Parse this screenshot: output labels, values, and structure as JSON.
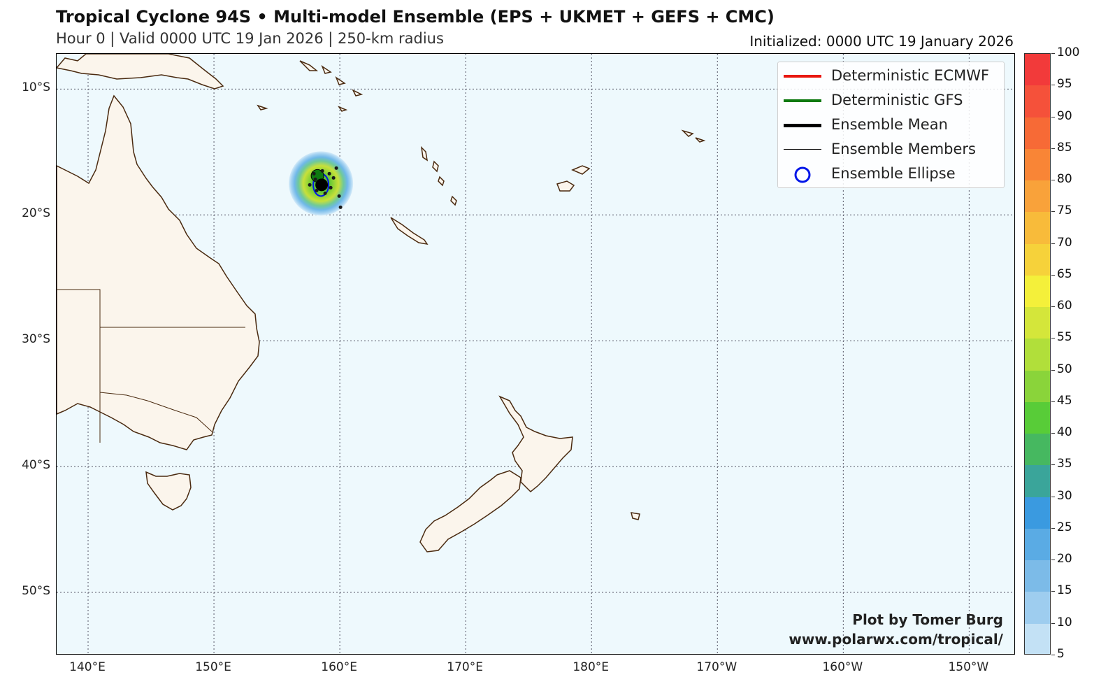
{
  "header": {
    "title": "Tropical Cyclone 94S • Multi-model Ensemble (EPS + UKMET + GEFS + CMC)",
    "subtitle": "Hour 0 | Valid 0000 UTC 19 Jan 2026 | 250-km radius",
    "initialized": "Initialized: 0000 UTC 19 January 2026"
  },
  "map": {
    "projection": "PlateCarree",
    "lon_range": [
      137.5,
      213.7
    ],
    "lat_range": [
      -55.0,
      -7.2
    ],
    "gridlines": true,
    "ocean_color": "#eef9fd",
    "land_color": "#fbf5ec",
    "coast_color": "#4a2a10",
    "lat_ticks": [
      {
        "lat": -10,
        "label": "10°S"
      },
      {
        "lat": -20,
        "label": "20°S"
      },
      {
        "lat": -30,
        "label": "30°S"
      },
      {
        "lat": -40,
        "label": "40°S"
      },
      {
        "lat": -50,
        "label": "50°S"
      }
    ],
    "lon_ticks": [
      {
        "lon": 140,
        "label": "140°E"
      },
      {
        "lon": 150,
        "label": "150°E"
      },
      {
        "lon": 160,
        "label": "160°E"
      },
      {
        "lon": 170,
        "label": "170°E"
      },
      {
        "lon": 180,
        "label": "180°E"
      },
      {
        "lon": 190,
        "label": "170°W"
      },
      {
        "lon": 200,
        "label": "160°W"
      },
      {
        "lon": 210,
        "label": "150°W"
      }
    ]
  },
  "storm": {
    "center_lon": 158.5,
    "center_lat": -17.5,
    "radius_km": 250
  },
  "legend": {
    "placement": "top-right",
    "items": [
      {
        "label": "Deterministic ECMWF",
        "color": "#e8170f",
        "style": "thick-line"
      },
      {
        "label": "Deterministic GFS",
        "color": "#0e7a10",
        "style": "thick-line"
      },
      {
        "label": "Ensemble Mean",
        "color": "#000000",
        "style": "thick-line"
      },
      {
        "label": "Ensemble Members",
        "color": "#000000",
        "style": "thin-line"
      },
      {
        "label": "Ensemble Ellipse",
        "color": "#0015e8",
        "style": "circle"
      }
    ]
  },
  "colorbar": {
    "labels": [
      "100",
      "95",
      "90",
      "85",
      "80",
      "75",
      "70",
      "65",
      "60",
      "55",
      "50",
      "45",
      "40",
      "35",
      "30",
      "25",
      "20",
      "15",
      "10",
      "5"
    ],
    "colors": [
      "#f23a3a",
      "#f5513a",
      "#f76a36",
      "#f98536",
      "#f9a23a",
      "#f8bb3a",
      "#f6d23a",
      "#f4f03a",
      "#d4e63a",
      "#b1df3a",
      "#8ad43a",
      "#58cc38",
      "#46b860",
      "#3aa59a",
      "#3a9ae0",
      "#5aabe4",
      "#7cbbe8",
      "#9ecdef",
      "#c3e1f5"
    ]
  },
  "credit": {
    "line1": "Plot by Tomer Burg",
    "line2": "www.polarwx.com/tropical/"
  }
}
